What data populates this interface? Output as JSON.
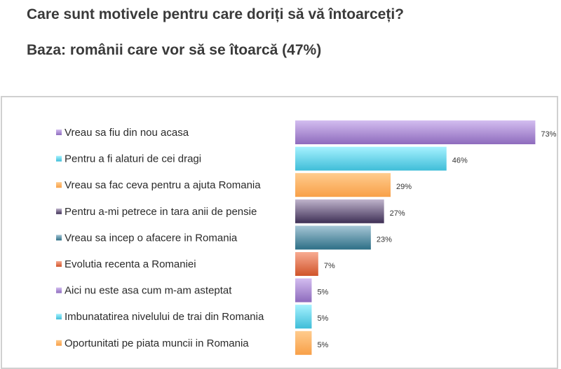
{
  "chart_data": {
    "type": "bar",
    "orientation": "horizontal",
    "title": "Care sunt motivele pentru care doriți să vă întoarceți?",
    "subtitle": "Baza: românii care vor să se îtoarcă (47%)",
    "xlabel": "",
    "ylabel": "",
    "xlim": [
      0,
      80
    ],
    "grid": false,
    "legend": "left",
    "categories": [
      "Vreau sa fiu din nou acasa",
      "Pentru a fi alaturi de cei dragi",
      "Vreau sa fac ceva pentru a ajuta Romania",
      "Pentru a-mi petrece in tara anii de pensie",
      "Vreau sa incep o afacere in Romania",
      "Evolutia recenta a Romaniei",
      "Aici nu este asa cum m-am asteptat",
      "Imbunatatirea nivelului de trai din Romania",
      "Oportunitati pe piata muncii in Romania"
    ],
    "values": [
      73,
      46,
      29,
      27,
      23,
      7,
      5,
      5,
      5
    ],
    "data_labels": [
      "73%",
      "46%",
      "29%",
      "27%",
      "23%",
      "7%",
      "5%",
      "5%",
      "5%"
    ],
    "colors": [
      [
        "#d3bdf0",
        "#8e6bbd"
      ],
      [
        "#a6f2ff",
        "#3fbdd8"
      ],
      [
        "#ffcc8e",
        "#f8a048"
      ],
      [
        "#c0b4cc",
        "#3e2f55"
      ],
      [
        "#a6c6d6",
        "#2d6f86"
      ],
      [
        "#f8ab92",
        "#d0542a"
      ],
      [
        "#d3bdf0",
        "#8e6bbd"
      ],
      [
        "#a6f2ff",
        "#3fbdd8"
      ],
      [
        "#ffcc8e",
        "#f8a048"
      ]
    ]
  }
}
